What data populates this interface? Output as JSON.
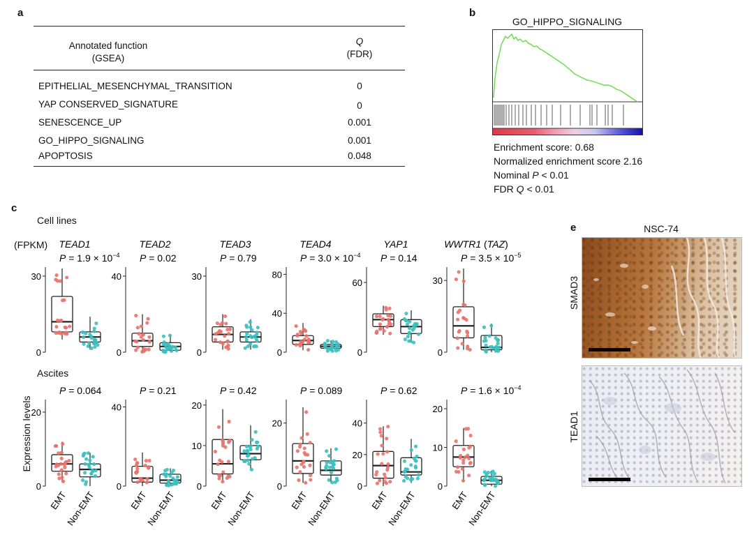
{
  "panel_a": {
    "letter": "a",
    "col1_header_line1": "Annotated function",
    "col1_header_line2": "(GSEA)",
    "col2_header_line1": "Q",
    "col2_header_line2": "(FDR)",
    "rows": [
      {
        "name": "EPITHELIAL_MESENCHYMAL_TRANSITION",
        "q": "0"
      },
      {
        "name": "YAP CONSERVED_SIGNATURE",
        "q": "0"
      },
      {
        "name": "SENESCENCE_UP",
        "q": "0.001"
      },
      {
        "name": "GO_HIPPO_SIGNALING",
        "q": "0.001"
      },
      {
        "name": "APOPTOSIS",
        "q": "0.048"
      }
    ]
  },
  "panel_b": {
    "letter": "b",
    "title": "GO_HIPPO_SIGNALING",
    "stats": {
      "es": "Enrichment score: 0.68",
      "nes": "Normalized enrichment score 2.16",
      "nominal_prefix": "Nominal ",
      "nominal_var": "P",
      "nominal_suffix": " < 0.01",
      "fdr_prefix": "FDR ",
      "fdr_var": "Q",
      "fdr_suffix": " < 0.01"
    },
    "colors": {
      "curve": "#66dd44",
      "bar_red": "#e0404a",
      "bar_blue": "#2020c0"
    }
  },
  "panel_c": {
    "letter": "c",
    "section1": "Cell lines",
    "section2": "Ascites",
    "unit": "(FPKM)",
    "ylabel": "Expression levels",
    "x_tick_emt": "EMT",
    "x_tick_non": "Non-EMT",
    "colors": {
      "emt": "#e8726c",
      "non_emt": "#3bbfbf"
    }
  },
  "chart_data": [
    {
      "type": "box",
      "group": "Cell lines",
      "gene": "TEAD1",
      "pvalue": "P = 1.9 × 10",
      "pexp": "−4",
      "ylim": [
        0,
        33
      ],
      "yticks": [
        0,
        30
      ],
      "categories": [
        "EMT",
        "Non-EMT"
      ],
      "boxes": [
        {
          "name": "EMT",
          "whislo": 5,
          "q1": 8,
          "median": 12,
          "q3": 22,
          "whishi": 33
        },
        {
          "name": "Non-EMT",
          "whislo": 1,
          "q1": 4,
          "median": 6,
          "q3": 8,
          "whishi": 14
        }
      ]
    },
    {
      "type": "box",
      "group": "Cell lines",
      "gene": "TEAD2",
      "pvalue": "P = 0.02",
      "pexp": "",
      "ylim": [
        0,
        44
      ],
      "yticks": [
        0,
        40
      ],
      "categories": [
        "EMT",
        "Non-EMT"
      ],
      "boxes": [
        {
          "name": "EMT",
          "whislo": 0,
          "q1": 3,
          "median": 6,
          "q3": 10,
          "whishi": 20
        },
        {
          "name": "Non-EMT",
          "whislo": 0,
          "q1": 1,
          "median": 3,
          "q3": 5,
          "whishi": 9
        }
      ]
    },
    {
      "type": "box",
      "group": "Cell lines",
      "gene": "TEAD3",
      "pvalue": "P = 0.79",
      "pexp": "",
      "ylim": [
        0,
        33
      ],
      "yticks": [
        0,
        30
      ],
      "categories": [
        "EMT",
        "Non-EMT"
      ],
      "boxes": [
        {
          "name": "EMT",
          "whislo": 1,
          "q1": 4,
          "median": 7,
          "q3": 10,
          "whishi": 15
        },
        {
          "name": "Non-EMT",
          "whislo": 1,
          "q1": 4,
          "median": 6,
          "q3": 8,
          "whishi": 13
        }
      ]
    },
    {
      "type": "box",
      "group": "Cell lines",
      "gene": "TEAD4",
      "pvalue": "P = 3.0 × 10",
      "pexp": "−4",
      "ylim": [
        0,
        86
      ],
      "yticks": [
        0,
        40,
        80
      ],
      "categories": [
        "EMT",
        "Non-EMT"
      ],
      "boxes": [
        {
          "name": "EMT",
          "whislo": 2,
          "q1": 8,
          "median": 12,
          "q3": 17,
          "whishi": 30
        },
        {
          "name": "Non-EMT",
          "whislo": 1,
          "q1": 4,
          "median": 6,
          "q3": 8,
          "whishi": 12
        }
      ]
    },
    {
      "type": "box",
      "group": "Cell lines",
      "gene": "YAP1",
      "pvalue": "P = 0.14",
      "pexp": "",
      "ylim": [
        0,
        72
      ],
      "yticks": [
        0,
        60
      ],
      "categories": [
        "EMT",
        "Non-EMT"
      ],
      "boxes": [
        {
          "name": "EMT",
          "whislo": 15,
          "q1": 22,
          "median": 28,
          "q3": 33,
          "whishi": 40
        },
        {
          "name": "Non-EMT",
          "whislo": 8,
          "q1": 16,
          "median": 22,
          "q3": 28,
          "whishi": 36
        }
      ]
    },
    {
      "type": "box",
      "group": "Cell lines",
      "gene": "WWTR1",
      "gene_extra": " (TAZ)",
      "pvalue": "P = 3.5 × 10",
      "pexp": "−5",
      "ylim": [
        0,
        35
      ],
      "yticks": [
        0,
        30
      ],
      "categories": [
        "EMT",
        "Non-EMT"
      ],
      "boxes": [
        {
          "name": "EMT",
          "whislo": 1,
          "q1": 6,
          "median": 11,
          "q3": 19,
          "whishi": 35
        },
        {
          "name": "Non-EMT",
          "whislo": 0,
          "q1": 1,
          "median": 2,
          "q3": 7,
          "whishi": 12
        }
      ]
    },
    {
      "type": "box",
      "group": "Ascites",
      "gene": "TEAD1",
      "pvalue": "P = 0.064",
      "pexp": "",
      "ylim": [
        0,
        23
      ],
      "yticks": [
        0,
        20
      ],
      "categories": [
        "EMT",
        "Non-EMT"
      ],
      "boxes": [
        {
          "name": "EMT",
          "whislo": 1,
          "q1": 4,
          "median": 6,
          "q3": 8.5,
          "whishi": 12
        },
        {
          "name": "Non-EMT",
          "whislo": 0,
          "q1": 2.5,
          "median": 4.5,
          "q3": 6,
          "whishi": 9
        }
      ]
    },
    {
      "type": "box",
      "group": "Ascites",
      "gene": "TEAD2",
      "pvalue": "P = 0.21",
      "pexp": "",
      "ylim": [
        0,
        43
      ],
      "yticks": [
        0,
        40
      ],
      "categories": [
        "EMT",
        "Non-EMT"
      ],
      "boxes": [
        {
          "name": "EMT",
          "whislo": 0,
          "q1": 2,
          "median": 4,
          "q3": 10,
          "whishi": 17
        },
        {
          "name": "Non-EMT",
          "whislo": 0,
          "q1": 1.5,
          "median": 3,
          "q3": 6,
          "whishi": 9
        }
      ]
    },
    {
      "type": "box",
      "group": "Ascites",
      "gene": "TEAD3",
      "pvalue": "P = 0.42",
      "pexp": "",
      "ylim": [
        0,
        21
      ],
      "yticks": [
        0,
        10,
        20
      ],
      "categories": [
        "EMT",
        "Non-EMT"
      ],
      "boxes": [
        {
          "name": "EMT",
          "whislo": 1,
          "q1": 3,
          "median": 5.5,
          "q3": 11.5,
          "whishi": 19
        },
        {
          "name": "Non-EMT",
          "whislo": 4,
          "q1": 6.5,
          "median": 8,
          "q3": 10,
          "whishi": 15
        }
      ]
    },
    {
      "type": "box",
      "group": "Ascites",
      "gene": "TEAD4",
      "pvalue": "P = 0.089",
      "pexp": "",
      "ylim": [
        0,
        27
      ],
      "yticks": [
        0,
        20
      ],
      "categories": [
        "EMT",
        "Non-EMT"
      ],
      "boxes": [
        {
          "name": "EMT",
          "whislo": 1,
          "q1": 4,
          "median": 8,
          "q3": 13.5,
          "whishi": 25
        },
        {
          "name": "Non-EMT",
          "whislo": 1,
          "q1": 3.5,
          "median": 5,
          "q3": 8,
          "whishi": 12
        }
      ]
    },
    {
      "type": "box",
      "group": "Ascites",
      "gene": "YAP1",
      "pvalue": "P = 0.62",
      "pexp": "",
      "ylim": [
        0,
        54
      ],
      "yticks": [
        0,
        20,
        40
      ],
      "categories": [
        "EMT",
        "Non-EMT"
      ],
      "boxes": [
        {
          "name": "EMT",
          "whislo": 0,
          "q1": 5,
          "median": 13,
          "q3": 22,
          "whishi": 38
        },
        {
          "name": "Non-EMT",
          "whislo": 2,
          "q1": 7,
          "median": 9,
          "q3": 18,
          "whishi": 30
        }
      ]
    },
    {
      "type": "box",
      "group": "Ascites",
      "gene": "WWTR1",
      "pvalue": "P = 1.6 × 10",
      "pexp": "−4",
      "ylim": [
        0,
        22
      ],
      "yticks": [
        0,
        10,
        20
      ],
      "categories": [
        "EMT",
        "Non-EMT"
      ],
      "boxes": [
        {
          "name": "EMT",
          "whislo": 1,
          "q1": 5,
          "median": 7.5,
          "q3": 10.5,
          "whishi": 15
        },
        {
          "name": "Non-EMT",
          "whislo": 0,
          "q1": 0.5,
          "median": 1.5,
          "q3": 2.5,
          "whishi": 4
        }
      ]
    }
  ],
  "panel_e": {
    "letter": "e",
    "title": "NSC-74",
    "label_top": "SMAD3",
    "label_bottom": "TEAD1"
  }
}
